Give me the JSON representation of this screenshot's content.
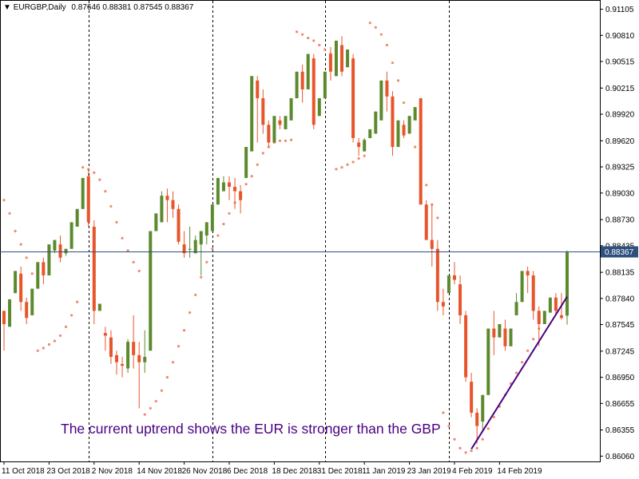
{
  "header": {
    "arrow": "▼",
    "symbol": "EURGBP,Daily",
    "ohlc": "0.87646 0.88381 0.87545 0.88367"
  },
  "annotation": "The current uptrend shows the EUR is stronger than the GBP",
  "colors": {
    "bull": "#5b8a2e",
    "bear": "#e8552a",
    "psar": "#f08870",
    "trendline": "#4b0082",
    "annotation": "#4b0082",
    "grid": "#000000",
    "price_line": "#2f4f7f"
  },
  "chart_data": {
    "type": "candlestick",
    "symbol": "EURGBP",
    "timeframe": "Daily",
    "ylim": [
      0.86,
      0.912
    ],
    "y_ticks": [
      "0.91105",
      "0.90810",
      "0.90515",
      "0.90215",
      "0.89920",
      "0.89620",
      "0.89325",
      "0.89030",
      "0.88730",
      "0.88435",
      "0.88135",
      "0.87840",
      "0.87545",
      "0.87245",
      "0.86950",
      "0.86655",
      "0.86355",
      "0.86060"
    ],
    "x_ticks": [
      {
        "label": "11 Oct 2018",
        "bar": 0
      },
      {
        "label": "23 Oct 2018",
        "bar": 8
      },
      {
        "label": "2 Nov 2018",
        "bar": 16
      },
      {
        "label": "14 Nov 2018",
        "bar": 24
      },
      {
        "label": "26 Nov 2018",
        "bar": 32
      },
      {
        "label": "6 Dec 2018",
        "bar": 40
      },
      {
        "label": "18 Dec 2018",
        "bar": 48
      },
      {
        "label": "31 Dec 2018",
        "bar": 56
      },
      {
        "label": "11 Jan 2019",
        "bar": 64
      },
      {
        "label": "23 Jan 2019",
        "bar": 72
      },
      {
        "label": "4 Feb 2019",
        "bar": 80
      },
      {
        "label": "14 Feb 2019",
        "bar": 88
      }
    ],
    "period_separators": [
      15,
      37,
      57,
      79
    ],
    "current_price": 0.88367,
    "current_price_label": "0.88367",
    "candles": [
      [
        0.877,
        0.877,
        0.8755,
        0.8725
      ],
      [
        0.8752,
        0.8765,
        0.8783,
        0.88
      ],
      [
        0.879,
        0.8802,
        0.8815,
        0.8825
      ],
      [
        0.8812,
        0.882,
        0.878,
        0.877
      ],
      [
        0.878,
        0.8785,
        0.8762,
        0.8755
      ],
      [
        0.8765,
        0.877,
        0.8795,
        0.8805
      ],
      [
        0.8795,
        0.8805,
        0.8825,
        0.884
      ],
      [
        0.8825,
        0.883,
        0.881,
        0.88
      ],
      [
        0.881,
        0.8818,
        0.8845,
        0.886
      ],
      [
        0.8838,
        0.885,
        0.885,
        0.8835
      ],
      [
        0.8845,
        0.8855,
        0.883,
        0.8825
      ],
      [
        0.8835,
        0.884,
        0.884,
        0.8832
      ],
      [
        0.884,
        0.885,
        0.887,
        0.8885
      ],
      [
        0.8865,
        0.8875,
        0.8885,
        0.8895
      ],
      [
        0.8885,
        0.891,
        0.892,
        0.8935
      ],
      [
        0.8922,
        0.893,
        0.887,
        0.8865
      ],
      [
        0.8865,
        0.8872,
        0.877,
        0.8755
      ],
      [
        0.877,
        0.8775,
        0.8778,
        0.878
      ],
      [
        0.8745,
        0.8752,
        0.8742,
        0.8725
      ],
      [
        0.874,
        0.8748,
        0.8718,
        0.871
      ],
      [
        0.872,
        0.8725,
        0.8712,
        0.8698
      ],
      [
        0.871,
        0.8718,
        0.8708,
        0.8695
      ],
      [
        0.8705,
        0.8738,
        0.8735,
        0.87
      ],
      [
        0.8735,
        0.8765,
        0.872,
        0.8705
      ],
      [
        0.872,
        0.8735,
        0.8712,
        0.866
      ],
      [
        0.8712,
        0.8748,
        0.8718,
        0.87
      ],
      [
        0.8725,
        0.873,
        0.886,
        0.8865
      ],
      [
        0.886,
        0.888,
        0.888,
        0.886
      ],
      [
        0.887,
        0.8905,
        0.89,
        0.887
      ],
      [
        0.89,
        0.8908,
        0.8895,
        0.887
      ],
      [
        0.8895,
        0.8905,
        0.8885,
        0.8875
      ],
      [
        0.8885,
        0.889,
        0.8848,
        0.8845
      ],
      [
        0.8845,
        0.886,
        0.8835,
        0.883
      ],
      [
        0.884,
        0.8865,
        0.884,
        0.883
      ],
      [
        0.8835,
        0.8855,
        0.885,
        0.884
      ],
      [
        0.8845,
        0.886,
        0.886,
        0.881
      ],
      [
        0.8855,
        0.887,
        0.887,
        0.8845
      ],
      [
        0.886,
        0.8875,
        0.889,
        0.889
      ],
      [
        0.889,
        0.891,
        0.892,
        0.892
      ],
      [
        0.8905,
        0.8922,
        0.8915,
        0.891
      ],
      [
        0.8915,
        0.8922,
        0.891,
        0.8895
      ],
      [
        0.891,
        0.892,
        0.8905,
        0.8885
      ],
      [
        0.8905,
        0.8912,
        0.8895,
        0.888
      ],
      [
        0.892,
        0.8925,
        0.8955,
        0.8965
      ],
      [
        0.895,
        0.8955,
        0.9035,
        0.904
      ],
      [
        0.903,
        0.9035,
        0.901,
        0.896
      ],
      [
        0.901,
        0.902,
        0.898,
        0.897
      ],
      [
        0.898,
        0.8985,
        0.896,
        0.8955
      ],
      [
        0.896,
        0.8965,
        0.899,
        0.8992
      ],
      [
        0.8985,
        0.899,
        0.898,
        0.8975
      ],
      [
        0.8975,
        0.8978,
        0.899,
        0.8995
      ],
      [
        0.8985,
        0.899,
        0.901,
        0.9015
      ],
      [
        0.901,
        0.902,
        0.904,
        0.905
      ],
      [
        0.904,
        0.9048,
        0.902,
        0.9005
      ],
      [
        0.902,
        0.903,
        0.906,
        0.9065
      ],
      [
        0.9055,
        0.906,
        0.898,
        0.8975
      ],
      [
        0.899,
        0.8992,
        0.901,
        0.902
      ],
      [
        0.901,
        0.9018,
        0.904,
        0.905
      ],
      [
        0.906,
        0.9068,
        0.904,
        0.903
      ],
      [
        0.9035,
        0.904,
        0.9075,
        0.9078
      ],
      [
        0.907,
        0.908,
        0.904,
        0.9035
      ],
      [
        0.9045,
        0.905,
        0.9065,
        0.9068
      ],
      [
        0.9055,
        0.906,
        0.8965,
        0.896
      ],
      [
        0.896,
        0.8965,
        0.8955,
        0.8945
      ],
      [
        0.895,
        0.8965,
        0.8963,
        0.8955
      ],
      [
        0.8965,
        0.897,
        0.8975,
        0.897
      ],
      [
        0.897,
        0.8975,
        0.8995,
        0.899
      ],
      [
        0.8985,
        0.899,
        0.903,
        0.904
      ],
      [
        0.903,
        0.904,
        0.9012,
        0.8995
      ],
      [
        0.9012,
        0.9018,
        0.8955,
        0.8945
      ],
      [
        0.8955,
        0.896,
        0.8985,
        0.8982
      ],
      [
        0.898,
        0.8985,
        0.8968,
        0.8965
      ],
      [
        0.897,
        0.8985,
        0.899,
        0.8988
      ],
      [
        0.8985,
        0.9,
        0.9,
        0.8995
      ],
      [
        0.901,
        0.901,
        0.889,
        0.889
      ],
      [
        0.889,
        0.8895,
        0.885,
        0.8855
      ],
      [
        0.885,
        0.889,
        0.884,
        0.882
      ],
      [
        0.884,
        0.885,
        0.878,
        0.877
      ],
      [
        0.878,
        0.8795,
        0.8775,
        0.8765
      ],
      [
        0.879,
        0.88,
        0.881,
        0.8805
      ],
      [
        0.881,
        0.8825,
        0.8805,
        0.88
      ],
      [
        0.88,
        0.881,
        0.8765,
        0.8755
      ],
      [
        0.8765,
        0.877,
        0.8695,
        0.869
      ],
      [
        0.869,
        0.87,
        0.8655,
        0.865
      ],
      [
        0.8655,
        0.866,
        0.864,
        0.862
      ],
      [
        0.8645,
        0.8675,
        0.8675,
        0.8635
      ],
      [
        0.8675,
        0.869,
        0.875,
        0.875
      ],
      [
        0.875,
        0.877,
        0.874,
        0.872
      ],
      [
        0.874,
        0.8745,
        0.8755,
        0.8755
      ],
      [
        0.875,
        0.876,
        0.873,
        0.8725
      ],
      [
        0.873,
        0.8745,
        0.875,
        0.875
      ],
      [
        0.8765,
        0.879,
        0.878,
        0.877
      ],
      [
        0.878,
        0.881,
        0.8815,
        0.881
      ],
      [
        0.8815,
        0.882,
        0.881,
        0.879
      ],
      [
        0.881,
        0.8815,
        0.877,
        0.876
      ],
      [
        0.877,
        0.8775,
        0.8755,
        0.873
      ],
      [
        0.8755,
        0.877,
        0.877,
        0.8755
      ],
      [
        0.8768,
        0.8778,
        0.8785,
        0.877
      ],
      [
        0.8785,
        0.879,
        0.877,
        0.8765
      ],
      [
        0.8765,
        0.879,
        0.8762,
        0.876
      ],
      [
        0.87646,
        0.88381,
        0.88367,
        0.87545
      ]
    ],
    "psar": [
      [
        0,
        0.8895
      ],
      [
        1,
        0.888
      ],
      [
        2,
        0.886
      ],
      [
        3,
        0.8845
      ],
      [
        4,
        0.883
      ],
      [
        5,
        0.8812
      ],
      [
        6,
        0.8725
      ],
      [
        7,
        0.8728
      ],
      [
        8,
        0.8732
      ],
      [
        9,
        0.8736
      ],
      [
        10,
        0.8742
      ],
      [
        11,
        0.8752
      ],
      [
        12,
        0.8765
      ],
      [
        13,
        0.878
      ],
      [
        14,
        0.8932
      ],
      [
        15,
        0.893
      ],
      [
        16,
        0.8926
      ],
      [
        17,
        0.8918
      ],
      [
        18,
        0.8905
      ],
      [
        19,
        0.8888
      ],
      [
        20,
        0.887
      ],
      [
        21,
        0.8852
      ],
      [
        22,
        0.8838
      ],
      [
        23,
        0.8825
      ],
      [
        24,
        0.8815
      ],
      [
        25,
        0.8653
      ],
      [
        26,
        0.866
      ],
      [
        27,
        0.8668
      ],
      [
        28,
        0.868
      ],
      [
        29,
        0.8695
      ],
      [
        30,
        0.8712
      ],
      [
        31,
        0.873
      ],
      [
        32,
        0.8748
      ],
      [
        33,
        0.8768
      ],
      [
        34,
        0.8788
      ],
      [
        35,
        0.8808
      ],
      [
        36,
        0.8825
      ],
      [
        37,
        0.884
      ],
      [
        38,
        0.8855
      ],
      [
        39,
        0.8868
      ],
      [
        40,
        0.888
      ],
      [
        41,
        0.8892
      ],
      [
        42,
        0.8903
      ],
      [
        43,
        0.8913
      ],
      [
        44,
        0.8922
      ],
      [
        45,
        0.8935
      ],
      [
        46,
        0.8948
      ],
      [
        47,
        0.8955
      ],
      [
        48,
        0.896
      ],
      [
        49,
        0.8962
      ],
      [
        50,
        0.8962
      ],
      [
        51,
        0.8963
      ],
      [
        52,
        0.9085
      ],
      [
        53,
        0.9082
      ],
      [
        54,
        0.9078
      ],
      [
        55,
        0.9075
      ],
      [
        56,
        0.907
      ],
      [
        57,
        0.9065
      ],
      [
        58,
        0.906
      ],
      [
        59,
        0.893
      ],
      [
        60,
        0.8932
      ],
      [
        61,
        0.8935
      ],
      [
        62,
        0.8938
      ],
      [
        63,
        0.8942
      ],
      [
        64,
        0.8945
      ],
      [
        65,
        0.9095
      ],
      [
        66,
        0.909
      ],
      [
        67,
        0.9082
      ],
      [
        68,
        0.907
      ],
      [
        69,
        0.905
      ],
      [
        70,
        0.903
      ],
      [
        71,
        0.9005
      ],
      [
        72,
        0.898
      ],
      [
        73,
        0.8955
      ],
      [
        74,
        0.8935
      ],
      [
        75,
        0.8912
      ],
      [
        76,
        0.889
      ],
      [
        77,
        0.8875
      ],
      [
        78,
        0.8655
      ],
      [
        79,
        0.864
      ],
      [
        80,
        0.8625
      ],
      [
        81,
        0.8615
      ],
      [
        82,
        0.861
      ],
      [
        83,
        0.8612
      ],
      [
        84,
        0.8615
      ],
      [
        85,
        0.8625
      ],
      [
        86,
        0.8637
      ],
      [
        87,
        0.865
      ],
      [
        88,
        0.8662
      ],
      [
        89,
        0.8675
      ],
      [
        90,
        0.8688
      ],
      [
        91,
        0.87
      ],
      [
        92,
        0.8712
      ],
      [
        93,
        0.8725
      ],
      [
        94,
        0.8738
      ],
      [
        95,
        0.875
      ],
      [
        96,
        0.8762
      ]
    ],
    "trendline": {
      "start": [
        83,
        0.8614
      ],
      "end": [
        100,
        0.8786
      ]
    }
  }
}
